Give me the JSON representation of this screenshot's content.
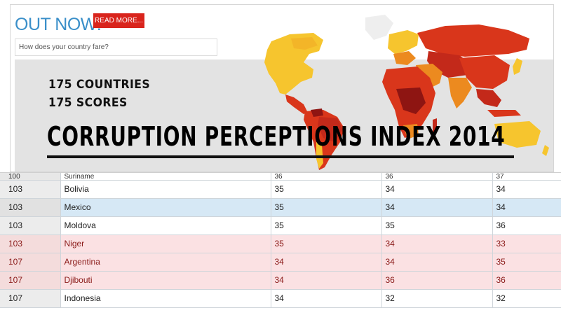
{
  "banner": {
    "out_now": "OUT NOW!",
    "read_more": "READ MORE...",
    "search_placeholder": "How does your country fare?",
    "count_countries": "175 COUNTRIES",
    "count_scores": "175 SCORES",
    "headline": "CORRUPTION PERCEPTIONS INDEX 2014",
    "map_colors": {
      "light": "#f6c52e",
      "medium": "#ec8a1f",
      "dark": "#d9361b",
      "darkest": "#8e1512",
      "banner_bg": "#e3e3e3",
      "accent_blue": "#3a8fc9",
      "button_red": "#d9241c"
    }
  },
  "table": {
    "rows": [
      {
        "rank": "100",
        "country": "Suriname",
        "s1": "36",
        "s2": "36",
        "s3": "37",
        "style": "first"
      },
      {
        "rank": "103",
        "country": "Bolivia",
        "s1": "35",
        "s2": "34",
        "s3": "34",
        "style": "white"
      },
      {
        "rank": "103",
        "country": "Mexico",
        "s1": "35",
        "s2": "34",
        "s3": "34",
        "style": "shade"
      },
      {
        "rank": "103",
        "country": "Moldova",
        "s1": "35",
        "s2": "35",
        "s3": "36",
        "style": "white"
      },
      {
        "rank": "103",
        "country": "Niger",
        "s1": "35",
        "s2": "34",
        "s3": "33",
        "style": "hl"
      },
      {
        "rank": "107",
        "country": "Argentina",
        "s1": "34",
        "s2": "34",
        "s3": "35",
        "style": "hl"
      },
      {
        "rank": "107",
        "country": "Djibouti",
        "s1": "34",
        "s2": "36",
        "s3": "36",
        "style": "hl"
      },
      {
        "rank": "107",
        "country": "Indonesia",
        "s1": "34",
        "s2": "32",
        "s3": "32",
        "style": "white"
      }
    ]
  }
}
